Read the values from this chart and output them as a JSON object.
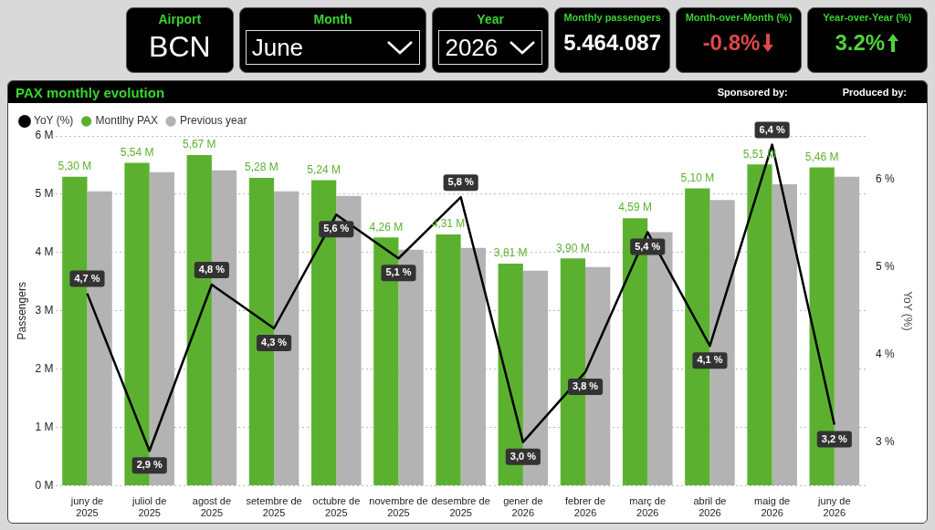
{
  "chart_data": [
    {
      "type": "other",
      "annotations": [
        "Airport",
        "BCN",
        "Month",
        "June",
        "Year",
        "2026",
        "Monthly passengers",
        "5.464.087",
        "Month-over-Month (%)",
        "-0.8%",
        "Year-over-Year (%)",
        "3.2%"
      ]
    },
    {
      "type": "bar",
      "title": "PAX monthly evolution",
      "ylabel": "Passengers",
      "y2label": "YoY (%)",
      "legend": "top left",
      "grid": "y",
      "categories": [
        "juny de 2025",
        "juliol de 2025",
        "agost de 2025",
        "setembre de 2025",
        "octubre de 2025",
        "novembre de 2025",
        "desembre de 2025",
        "gener de 2026",
        "febrer de 2026",
        "març de 2026",
        "abril de 2026",
        "maig de 2026",
        "juny de 2026"
      ],
      "series": [
        {
          "name": "Montlhy PAX",
          "color": "#5bb12f",
          "values": [
            5.3,
            5.54,
            5.67,
            5.28,
            5.24,
            4.26,
            4.31,
            3.81,
            3.9,
            4.59,
            5.1,
            5.51,
            5.46
          ],
          "value_labels": [
            "5,30 M",
            "5,54 M",
            "5,67 M",
            "5,28 M",
            "5,24 M",
            "4,26 M",
            "4,31 M",
            "3,81 M",
            "3,90 M",
            "4,59 M",
            "5,10 M",
            "5,51 M",
            "5,46 M"
          ]
        },
        {
          "name": "Previous year",
          "color": "#b3b3b3",
          "values": [
            5.05,
            5.38,
            5.41,
            5.05,
            4.97,
            4.05,
            4.08,
            3.69,
            3.75,
            4.35,
            4.9,
            5.17,
            5.3
          ]
        },
        {
          "name": "YoY (%)",
          "type": "line",
          "axis": "y2",
          "color": "#000000",
          "marker": "none",
          "values": [
            4.7,
            2.9,
            4.8,
            4.3,
            5.6,
            5.1,
            5.8,
            3.0,
            3.8,
            5.4,
            4.1,
            6.4,
            3.2
          ],
          "value_labels": [
            "4,7 %",
            "2,9 %",
            "4,8 %",
            "4,3 %",
            "5,6 %",
            "5,1 %",
            "5,8 %",
            "3,0 %",
            "3,8 %",
            "5,4 %",
            "4,1 %",
            "6,4 %",
            "3,2 %"
          ]
        }
      ],
      "ylim": [
        0,
        6
      ],
      "yticks": [
        {
          "value": 0,
          "label": "0 M"
        },
        {
          "value": 1,
          "label": "1 M"
        },
        {
          "value": 2,
          "label": "2 M"
        },
        {
          "value": 3,
          "label": "3 M"
        },
        {
          "value": 4,
          "label": "4 M"
        },
        {
          "value": 5,
          "label": "5 M"
        },
        {
          "value": 6,
          "label": "6 M"
        }
      ],
      "y2lim": [
        2.5,
        6.5
      ],
      "y2ticks": [
        {
          "value": 3,
          "label": "3 %"
        },
        {
          "value": 4,
          "label": "4 %"
        },
        {
          "value": 5,
          "label": "5 %"
        },
        {
          "value": 6,
          "label": "6 %"
        }
      ],
      "annotations": [
        "Sponsored by:",
        "Produced by:"
      ]
    }
  ]
}
